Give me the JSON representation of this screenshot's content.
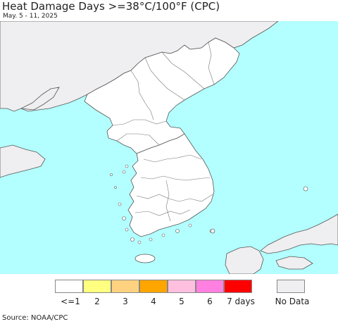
{
  "header": {
    "title": "Heat Damage Days >=38°C/100°F (CPC)",
    "date_range": "May. 5 - 11, 2025"
  },
  "map": {
    "ocean_color": "#b3ffff",
    "land_color": "#ffffff",
    "no_data_land_color": "#efeef0",
    "border_color": "#555555",
    "regions": [
      "North Korea",
      "South Korea",
      "China (no data)",
      "Japan (no data)",
      "Russia (no data)"
    ]
  },
  "legend": {
    "items": [
      {
        "label": "<=1",
        "color": "#ffffff"
      },
      {
        "label": "2",
        "color": "#ffff80"
      },
      {
        "label": "3",
        "color": "#ffd27f"
      },
      {
        "label": "4",
        "color": "#ffa500"
      },
      {
        "label": "5",
        "color": "#ffc0e0"
      },
      {
        "label": "6",
        "color": "#ff80e0"
      },
      {
        "label": "7 days",
        "color": "#ff0000"
      }
    ],
    "no_data": {
      "label": "No Data",
      "color": "#efeef0"
    }
  },
  "footer": {
    "source": "Source: NOAA/CPC"
  }
}
